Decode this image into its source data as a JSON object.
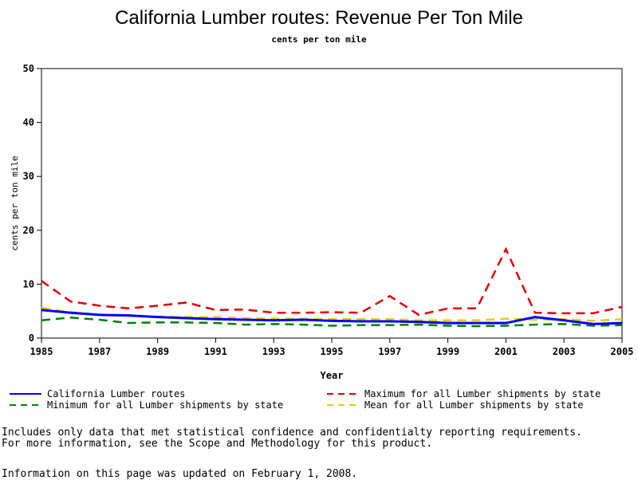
{
  "chart_data": {
    "type": "line",
    "title": "California Lumber routes: Revenue Per Ton Mile",
    "subtitle": "cents per ton mile",
    "xlabel": "Year",
    "ylabel": "cents per ton mile",
    "xlim": [
      1985,
      2005
    ],
    "ylim": [
      0,
      50
    ],
    "x_ticks": [
      "1985",
      "1987",
      "1989",
      "1991",
      "1993",
      "1995",
      "1997",
      "1999",
      "2001",
      "2003",
      "2005"
    ],
    "y_ticks": [
      "0",
      "10",
      "20",
      "30",
      "40",
      "50"
    ],
    "grid": false,
    "legend_position": "bottom",
    "x": [
      1985,
      1986,
      1987,
      1988,
      1989,
      1990,
      1991,
      1992,
      1993,
      1994,
      1995,
      1996,
      1997,
      1998,
      1999,
      2000,
      2001,
      2002,
      2003,
      2004,
      2005
    ],
    "series": [
      {
        "name": "California Lumber routes",
        "color": "#0000ff",
        "dash": "solid",
        "values": [
          5.2,
          4.7,
          4.3,
          4.2,
          3.9,
          3.7,
          3.5,
          3.4,
          3.3,
          3.4,
          3.2,
          3.1,
          3.1,
          3.0,
          2.8,
          2.8,
          2.8,
          3.9,
          3.3,
          2.6,
          2.8
        ]
      },
      {
        "name": "Maximum for all Lumber shipments by state",
        "color": "#e00000",
        "dash": "dashed",
        "values": [
          10.6,
          6.8,
          6.0,
          5.5,
          6.0,
          6.6,
          5.2,
          5.3,
          4.7,
          4.7,
          4.8,
          4.7,
          7.8,
          4.3,
          5.5,
          5.5,
          16.5,
          4.7,
          4.6,
          4.6,
          5.8
        ]
      },
      {
        "name": "Minimum for all Lumber shipments by state",
        "color": "#008000",
        "dash": "dashed",
        "values": [
          3.3,
          3.8,
          3.4,
          2.8,
          2.9,
          2.9,
          2.8,
          2.5,
          2.6,
          2.5,
          2.3,
          2.4,
          2.4,
          2.5,
          2.3,
          2.2,
          2.3,
          2.5,
          2.6,
          2.3,
          2.4
        ]
      },
      {
        "name": "Mean for all Lumber shipments by state",
        "color": "#f0c800",
        "dash": "dashed",
        "values": [
          5.6,
          4.8,
          4.3,
          4.1,
          4.0,
          3.9,
          3.9,
          3.7,
          3.6,
          3.6,
          3.5,
          3.5,
          3.5,
          3.3,
          3.3,
          3.3,
          3.6,
          3.4,
          3.5,
          3.2,
          3.5
        ]
      }
    ]
  },
  "notes": {
    "line1": "Includes only data that met statistical confidence and confidentialty reporting requirements.",
    "line2": "For more information, see the Scope and Methodology for this product.",
    "line3": "Information on this page was updated on February 1, 2008."
  }
}
